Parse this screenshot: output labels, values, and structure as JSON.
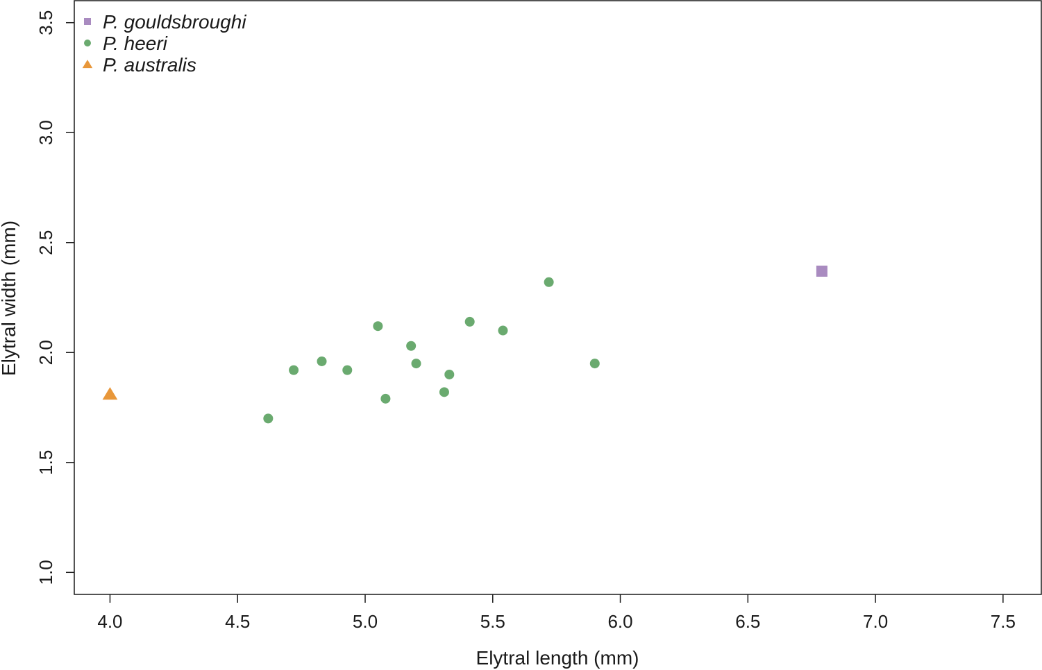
{
  "chart_data": {
    "type": "scatter",
    "title": "",
    "xlabel": "Elytral length (mm)",
    "ylabel": "Elytral width (mm)",
    "xlim": [
      3.86,
      7.65
    ],
    "ylim": [
      0.9,
      3.6
    ],
    "xticks": [
      "4.0",
      "4.5",
      "5.0",
      "5.5",
      "6.0",
      "6.5",
      "7.0",
      "7.5"
    ],
    "yticks": [
      "1.0",
      "1.5",
      "2.0",
      "2.5",
      "3.0",
      "3.5"
    ],
    "grid": false,
    "legend_position": "top-left",
    "series": [
      {
        "name": "P. gouldsbroughi",
        "marker": "square",
        "color": "#a98bc0",
        "points": [
          [
            6.79,
            2.37
          ]
        ]
      },
      {
        "name": "P. heeri",
        "marker": "circle",
        "color": "#6aaa6f",
        "points": [
          [
            4.62,
            1.7
          ],
          [
            4.72,
            1.92
          ],
          [
            4.83,
            1.96
          ],
          [
            4.93,
            1.92
          ],
          [
            5.05,
            2.12
          ],
          [
            5.08,
            1.79
          ],
          [
            5.18,
            2.03
          ],
          [
            5.2,
            1.95
          ],
          [
            5.31,
            1.82
          ],
          [
            5.33,
            1.9
          ],
          [
            5.41,
            2.14
          ],
          [
            5.54,
            2.1
          ],
          [
            5.72,
            2.32
          ],
          [
            5.9,
            1.95
          ]
        ]
      },
      {
        "name": "P. australis",
        "marker": "triangle",
        "color": "#e8973a",
        "points": [
          [
            4.0,
            1.81
          ]
        ]
      }
    ]
  }
}
